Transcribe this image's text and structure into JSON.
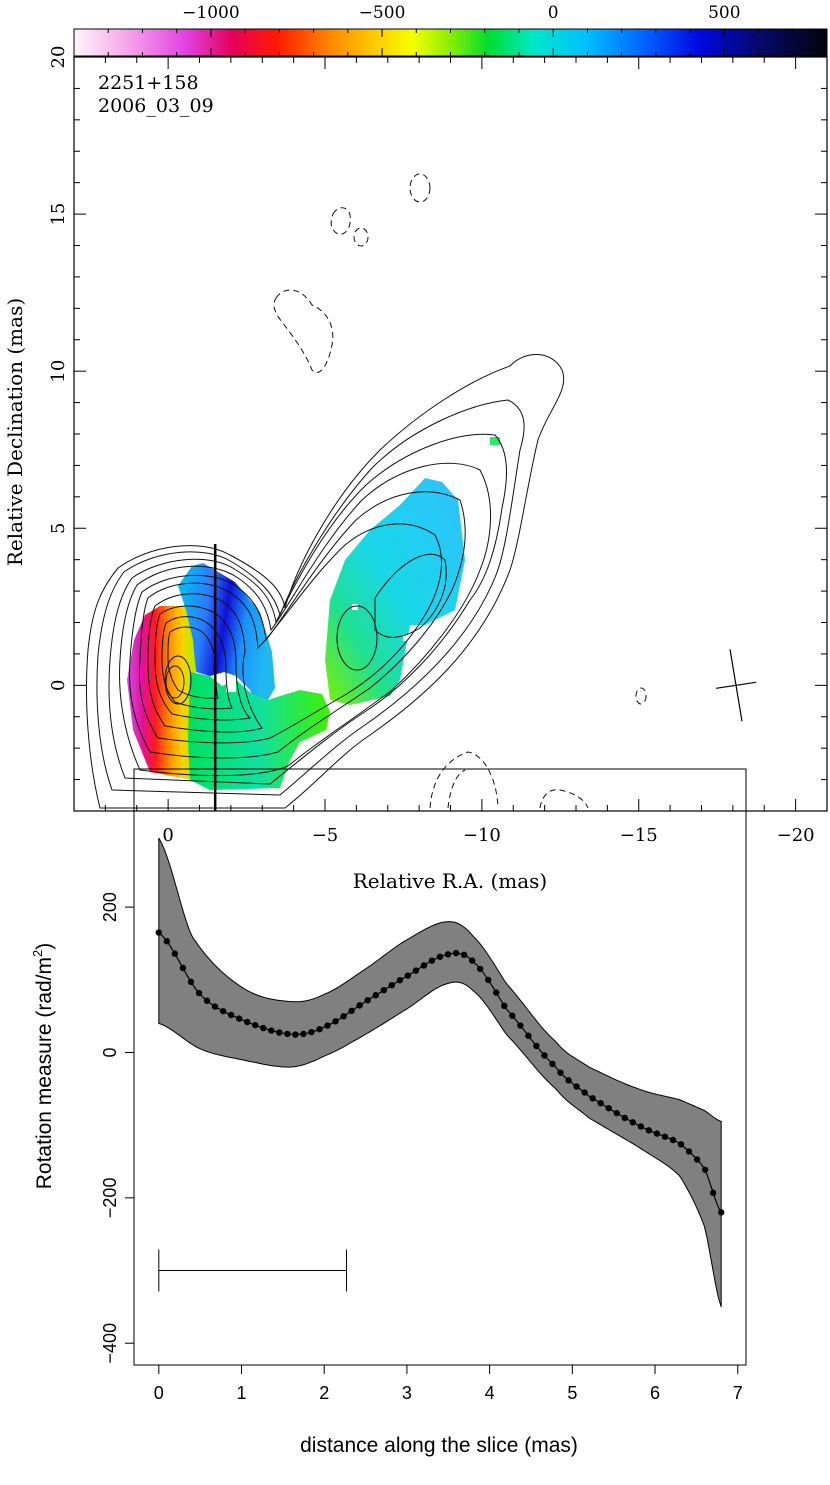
{
  "chart_data": [
    {
      "type": "heatmap",
      "source_label": "2251+158",
      "epoch_label": "2006_03_09",
      "xlabel": "Relative R.A. (mas)",
      "ylabel": "Relative Declination (mas)",
      "xlim": [
        3,
        -21
      ],
      "ylim": [
        -4,
        20
      ],
      "x_ticks": [
        "0",
        "−5",
        "−10",
        "−15",
        "−20"
      ],
      "y_ticks": [
        "0",
        "5",
        "10",
        "15",
        "20"
      ],
      "colorbar": {
        "range": [
          -1400,
          800
        ],
        "tick_labels": [
          "−1000",
          "−500",
          "0",
          "500"
        ]
      },
      "slice_line": {
        "x": -1.5,
        "y_from": -4,
        "y_to": 4.5
      },
      "beam": {
        "x": -18.1,
        "y": 0
      }
    },
    {
      "type": "line",
      "xlabel": "distance along the slice (mas)",
      "ylabel": "Rotation measure (rad/m²)",
      "ylabel_main": "Rotation measure (rad/m",
      "ylabel_sup": "2",
      "ylabel_close": ")",
      "xlim": [
        -0.3,
        7.1
      ],
      "ylim": [
        -430,
        390
      ],
      "x_ticks": [
        "0",
        "1",
        "2",
        "3",
        "4",
        "5",
        "6",
        "7"
      ],
      "y_ticks": [
        "−400",
        "−200",
        "0",
        "200"
      ],
      "beam_bar": {
        "x0": 0,
        "x1": 2.27,
        "y": -300
      },
      "series": [
        {
          "name": "RM",
          "x": [
            0,
            6.8
          ],
          "y_points": [
            [
              0,
              165
            ],
            [
              0.5,
              80
            ],
            [
              1.0,
              45
            ],
            [
              1.6,
              25
            ],
            [
              2.0,
              35
            ],
            [
              2.5,
              70
            ],
            [
              3.0,
              105
            ],
            [
              3.5,
              135
            ],
            [
              3.8,
              125
            ],
            [
              4.2,
              60
            ],
            [
              4.8,
              -20
            ],
            [
              5.2,
              -60
            ],
            [
              5.8,
              -100
            ],
            [
              6.3,
              -125
            ],
            [
              6.6,
              -160
            ],
            [
              6.8,
              -220
            ]
          ]
        },
        {
          "name": "error_upper",
          "y_points": [
            [
              0,
              295
            ],
            [
              0.4,
              160
            ],
            [
              1.0,
              90
            ],
            [
              1.6,
              70
            ],
            [
              2.0,
              80
            ],
            [
              2.5,
              115
            ],
            [
              3.0,
              155
            ],
            [
              3.5,
              180
            ],
            [
              3.8,
              160
            ],
            [
              4.2,
              95
            ],
            [
              4.8,
              15
            ],
            [
              5.2,
              -20
            ],
            [
              5.8,
              -50
            ],
            [
              6.3,
              -65
            ],
            [
              6.6,
              -80
            ],
            [
              6.8,
              -95
            ]
          ]
        },
        {
          "name": "error_lower",
          "y_points": [
            [
              0,
              40
            ],
            [
              0.5,
              5
            ],
            [
              1.0,
              -10
            ],
            [
              1.6,
              -20
            ],
            [
              2.0,
              -5
            ],
            [
              2.5,
              25
            ],
            [
              3.0,
              60
            ],
            [
              3.5,
              95
            ],
            [
              3.8,
              85
            ],
            [
              4.2,
              25
            ],
            [
              4.8,
              -50
            ],
            [
              5.2,
              -90
            ],
            [
              5.8,
              -130
            ],
            [
              6.3,
              -170
            ],
            [
              6.6,
              -240
            ],
            [
              6.8,
              -350
            ]
          ]
        }
      ]
    }
  ]
}
